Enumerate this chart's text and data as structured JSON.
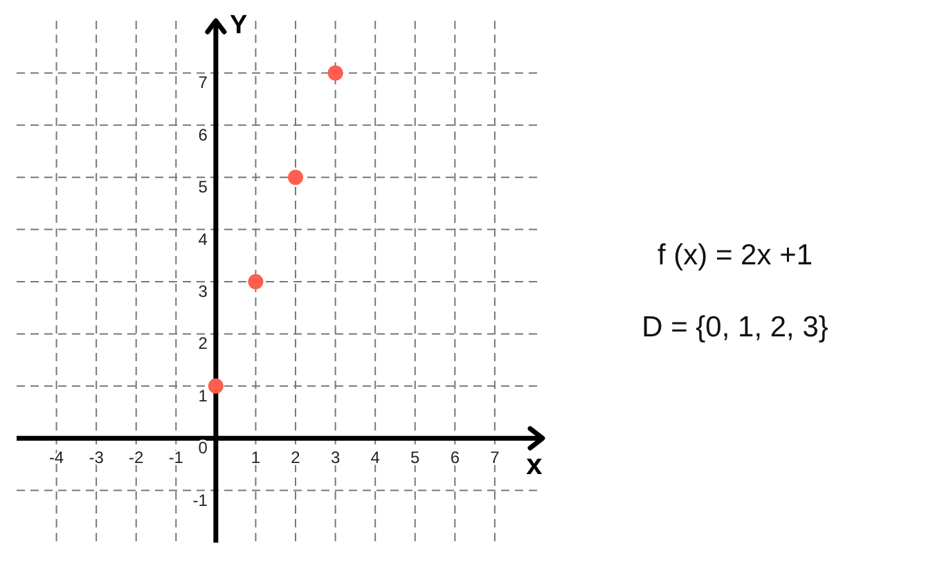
{
  "chart_data": {
    "type": "scatter",
    "x": [
      0,
      1,
      2,
      3
    ],
    "values": [
      1,
      3,
      5,
      7
    ],
    "color": "#fd5e4d",
    "xlabel": "x",
    "ylabel": "Y",
    "xlim": [
      -5,
      8.2
    ],
    "ylim": [
      -2,
      8
    ],
    "xticks": [
      -4,
      -3,
      -2,
      -1,
      1,
      2,
      3,
      4,
      5,
      6,
      7
    ],
    "yticks": [
      -1,
      0,
      1,
      2,
      3,
      4,
      5,
      6,
      7
    ],
    "grid": true,
    "marker": "circle",
    "annotations": [
      "f (x) = 2x +1",
      "D = {0, 1, 2, 3}"
    ]
  }
}
